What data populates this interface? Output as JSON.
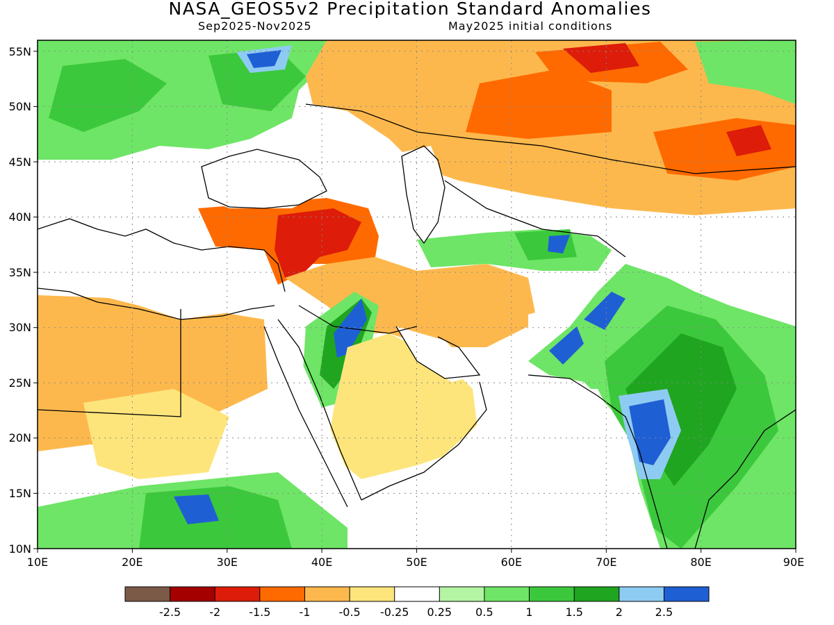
{
  "title": "NASA_GEOS5v2 Precipitation Standard Anomalies",
  "subtitle_left": "Sep2025-Nov2025",
  "subtitle_right": "May2025 initial conditions",
  "map": {
    "lon_range": [
      10,
      90
    ],
    "lat_range": [
      10,
      56
    ],
    "lon_ticks": [
      "10E",
      "20E",
      "30E",
      "40E",
      "50E",
      "60E",
      "70E",
      "80E",
      "90E"
    ],
    "lat_ticks": [
      "10N",
      "15N",
      "20N",
      "25N",
      "30N",
      "35N",
      "40N",
      "45N",
      "50N",
      "55N"
    ],
    "grid": "dotted"
  },
  "colorbar": {
    "colors": [
      "#7b5a47",
      "#a50000",
      "#dd1c0a",
      "#ff6a00",
      "#fdb84d",
      "#fde57c",
      "#ffffff",
      "#b3f5a3",
      "#6ee566",
      "#3cc83c",
      "#1fa51f",
      "#8ecbf2",
      "#1f5fd4"
    ],
    "labels": [
      "-2.5",
      "-2",
      "-1.5",
      "-1",
      "-0.5",
      "-0.25",
      "0.25",
      "0.5",
      "1",
      "1.5",
      "2",
      "2.5"
    ]
  }
}
